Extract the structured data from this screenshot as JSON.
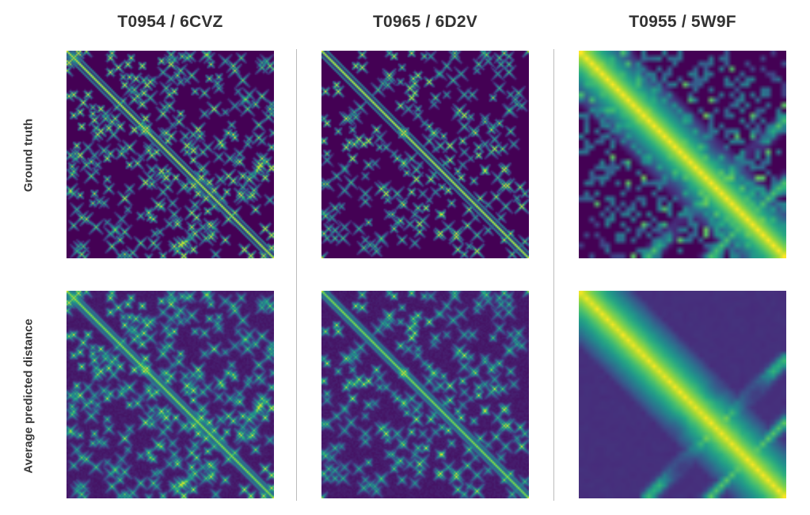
{
  "columns": [
    {
      "title": "T0954 / 6CVZ"
    },
    {
      "title": "T0965 / 6D2V"
    },
    {
      "title": "T0955 / 5W9F"
    }
  ],
  "rows": [
    {
      "label": "Ground truth"
    },
    {
      "label": "Average predicted distance"
    }
  ],
  "chart_data": {
    "type": "heatmap",
    "description_free": false,
    "colormap": "viridis",
    "colormap_stops": [
      "#440154",
      "#472d7b",
      "#3b528b",
      "#2c728e",
      "#21918c",
      "#28ae80",
      "#5ec962",
      "#addc30",
      "#fde725"
    ],
    "panels": [
      {
        "column": "T0954 / 6CVZ",
        "row": "Ground truth",
        "grid_size": 130
      },
      {
        "column": "T0954 / 6CVZ",
        "row": "Average predicted distance",
        "grid_size": 130
      },
      {
        "column": "T0965 / 6D2V",
        "row": "Ground truth",
        "grid_size": 130
      },
      {
        "column": "T0965 / 6D2V",
        "row": "Average predicted distance",
        "grid_size": 130
      },
      {
        "column": "T0955 / 5W9F",
        "row": "Ground truth",
        "grid_size": 40
      },
      {
        "column": "T0955 / 5W9F",
        "row": "Average predicted distance",
        "grid_size": 40
      }
    ]
  }
}
